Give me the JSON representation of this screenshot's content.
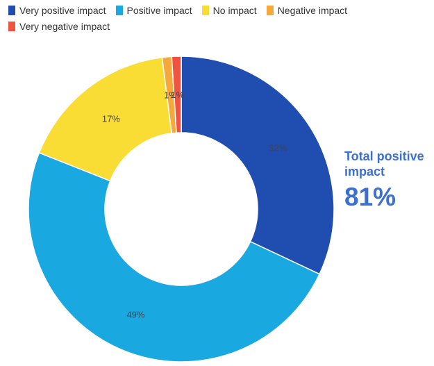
{
  "chart_data": {
    "type": "pie",
    "variant": "donut",
    "title": "",
    "series": [
      {
        "name": "Very positive impact",
        "value": 32,
        "label": "32%",
        "color": "#1f4eb0"
      },
      {
        "name": "Positive impact",
        "value": 49,
        "label": "49%",
        "color": "#1aa8e0"
      },
      {
        "name": "No impact",
        "value": 17,
        "label": "17%",
        "color": "#f9dd35"
      },
      {
        "name": "Negative impact",
        "value": 1,
        "label": "1%",
        "color": "#f5a83c"
      },
      {
        "name": "Very negative impact",
        "value": 1,
        "label": "1%",
        "color": "#f0533f"
      }
    ],
    "legend_position": "top-left"
  },
  "summary": {
    "label": "Total positive impact",
    "value": "81%"
  }
}
